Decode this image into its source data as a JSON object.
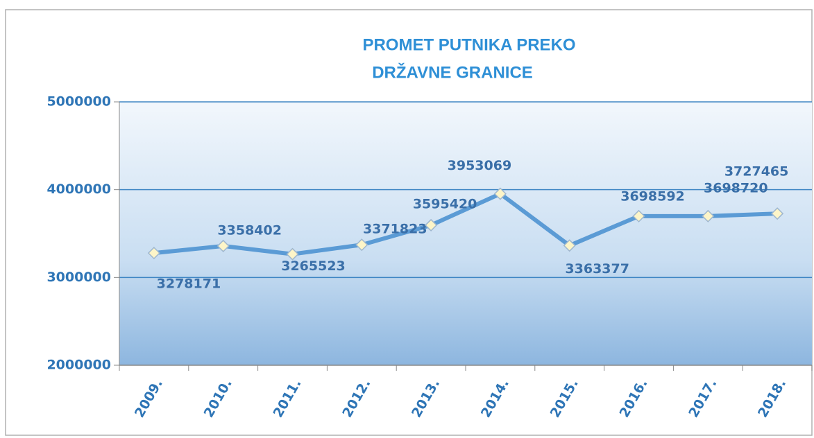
{
  "chart_data": {
    "type": "line",
    "title": [
      "PROMET PUTNIKA PREKO",
      "DRŽAVNE GRANICE"
    ],
    "categories": [
      "2009.",
      "2010.",
      "2011.",
      "2012.",
      "2013.",
      "2014.",
      "2015.",
      "2016.",
      "2017.",
      "2018."
    ],
    "values": [
      3278171,
      3358402,
      3265523,
      3371823,
      3595420,
      3953069,
      3363377,
      3698592,
      3698720,
      3727465
    ],
    "color": "#5b9bd5",
    "ylim": [
      2000000,
      5000000
    ],
    "yticks": [
      2000000,
      3000000,
      4000000,
      5000000
    ],
    "grid": true
  }
}
